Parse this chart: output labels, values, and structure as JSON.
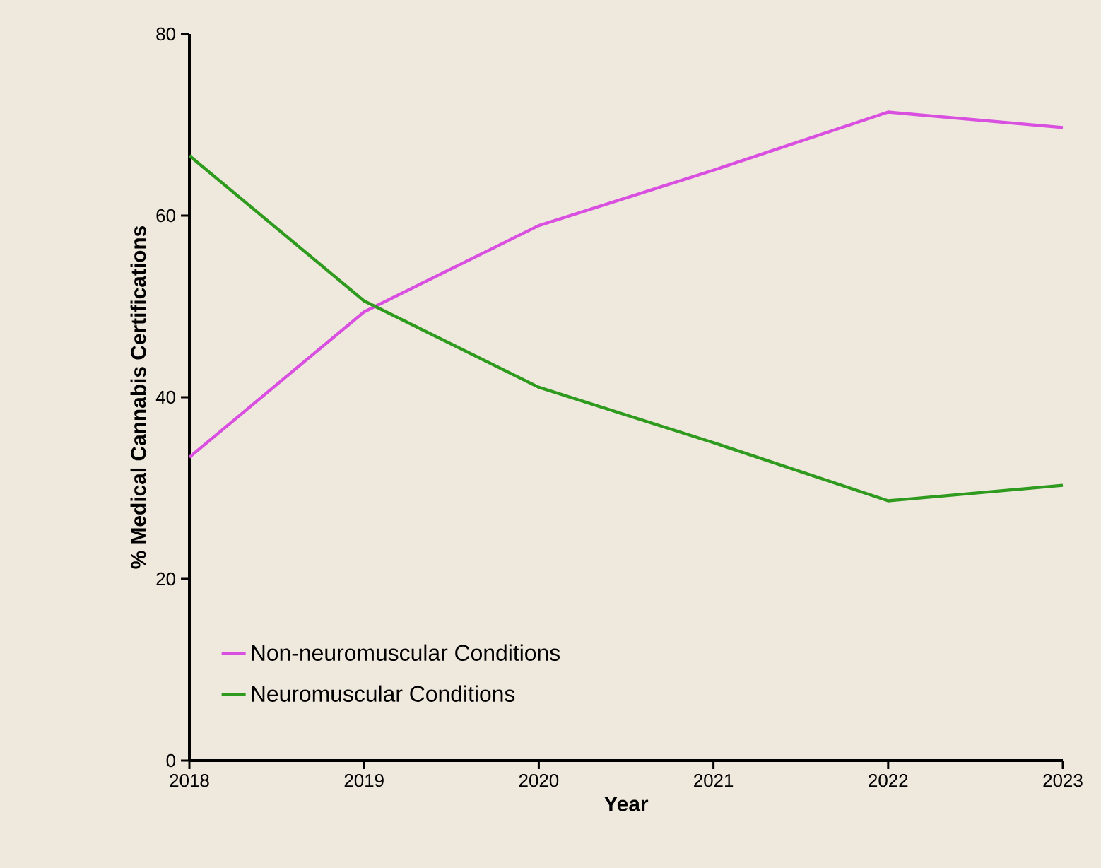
{
  "chart_data": {
    "type": "line",
    "xlabel": "Year",
    "ylabel": "% Medical Cannabis Certifications",
    "x": [
      2018,
      2019,
      2020,
      2021,
      2022,
      2023
    ],
    "series": [
      {
        "name": "Non-neuromuscular Conditions",
        "color": "#d94fe0",
        "values": [
          33.4,
          49.4,
          58.9,
          65,
          71.4,
          69.7
        ]
      },
      {
        "name": "Neuromuscular Conditions",
        "color": "#2e9a1e",
        "values": [
          66.6,
          50.6,
          41.1,
          35,
          28.6,
          30.3
        ]
      }
    ],
    "xlim": [
      2018,
      2023
    ],
    "xticks": [
      2018,
      2019,
      2020,
      2021,
      2022,
      2023
    ],
    "ylim": [
      0,
      80
    ],
    "yticks": [
      0,
      20,
      40,
      60,
      80
    ],
    "legend": "bottom left",
    "marker": "none",
    "line_style": "solid",
    "grid": false
  }
}
